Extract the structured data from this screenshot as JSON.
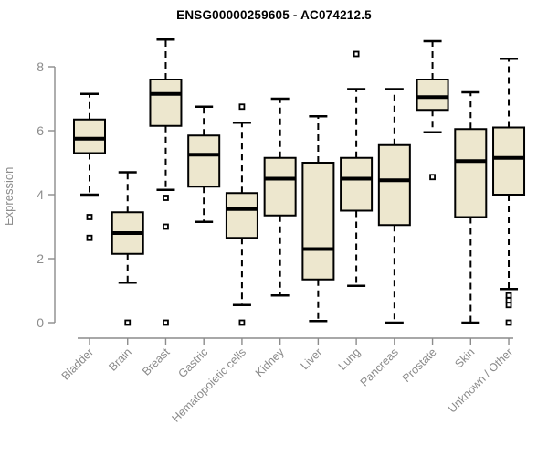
{
  "chart_data": {
    "type": "boxplot",
    "title": "ENSG00000259605 - AC074212.5",
    "ylabel": "Expression",
    "xlabel": "",
    "ylim": [
      0,
      8.9
    ],
    "yticks": [
      0,
      2,
      4,
      6,
      8
    ],
    "grid": false,
    "legend": "none",
    "categories": [
      "Bladder",
      "Brain",
      "Breast",
      "Gastric",
      "Hematopoietic cells",
      "Kidney",
      "Liver",
      "Lung",
      "Pancreas",
      "Prostate",
      "Skin",
      "Unknown / Other"
    ],
    "boxes": [
      {
        "category": "Bladder",
        "whisker_low": 4.0,
        "q1": 5.3,
        "median": 5.75,
        "q3": 6.35,
        "whisker_high": 7.15,
        "outliers": [
          3.3,
          2.65
        ]
      },
      {
        "category": "Brain",
        "whisker_low": 1.25,
        "q1": 2.15,
        "median": 2.8,
        "q3": 3.45,
        "whisker_high": 4.7,
        "outliers": [
          0.0
        ]
      },
      {
        "category": "Breast",
        "whisker_low": 4.15,
        "q1": 6.15,
        "median": 7.15,
        "q3": 7.6,
        "whisker_high": 8.85,
        "outliers": [
          3.9,
          3.0,
          0.0
        ]
      },
      {
        "category": "Gastric",
        "whisker_low": 3.15,
        "q1": 4.25,
        "median": 5.25,
        "q3": 5.85,
        "whisker_high": 6.75,
        "outliers": []
      },
      {
        "category": "Hematopoietic cells",
        "whisker_low": 0.55,
        "q1": 2.65,
        "median": 3.55,
        "q3": 4.05,
        "whisker_high": 6.25,
        "outliers": [
          6.75,
          0.0
        ]
      },
      {
        "category": "Kidney",
        "whisker_low": 0.85,
        "q1": 3.35,
        "median": 4.5,
        "q3": 5.15,
        "whisker_high": 7.0,
        "outliers": []
      },
      {
        "category": "Liver",
        "whisker_low": 0.05,
        "q1": 1.35,
        "median": 2.3,
        "q3": 5.0,
        "whisker_high": 6.45,
        "outliers": []
      },
      {
        "category": "Lung",
        "whisker_low": 1.15,
        "q1": 3.5,
        "median": 4.5,
        "q3": 5.15,
        "whisker_high": 7.3,
        "outliers": [
          8.4
        ]
      },
      {
        "category": "Pancreas",
        "whisker_low": 0.0,
        "q1": 3.05,
        "median": 4.45,
        "q3": 5.55,
        "whisker_high": 7.3,
        "outliers": []
      },
      {
        "category": "Prostate",
        "whisker_low": 5.95,
        "q1": 6.65,
        "median": 7.05,
        "q3": 7.6,
        "whisker_high": 8.8,
        "outliers": [
          4.55
        ]
      },
      {
        "category": "Skin",
        "whisker_low": 0.0,
        "q1": 3.3,
        "median": 5.05,
        "q3": 6.05,
        "whisker_high": 7.2,
        "outliers": []
      },
      {
        "category": "Unknown / Other",
        "whisker_low": 1.05,
        "q1": 4.0,
        "median": 5.15,
        "q3": 6.1,
        "whisker_high": 8.25,
        "outliers": [
          0.85,
          0.7,
          0.55,
          0.0
        ]
      }
    ],
    "colors": {
      "box_fill": "#EDE7CE",
      "box_border": "#000000",
      "median": "#000000",
      "whisker": "#000000",
      "outlier_stroke": "#000000",
      "outlier_fill": "#ffffff",
      "axis": "#8C8C8C",
      "tick_labels": "#8C8C8C",
      "category_labels": "#8A8A8A",
      "title": "#000000",
      "background": "#ffffff"
    }
  }
}
